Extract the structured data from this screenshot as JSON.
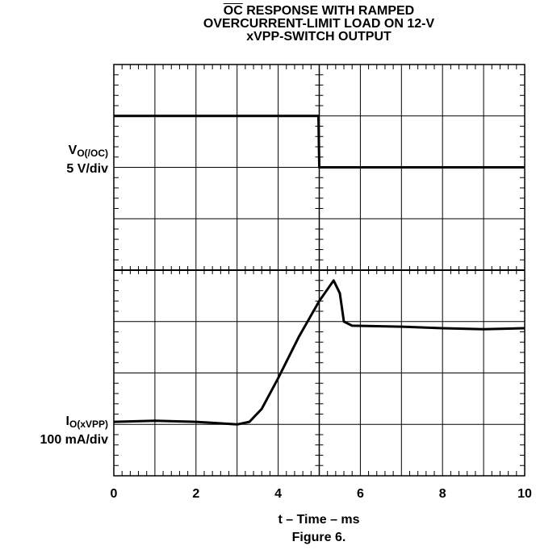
{
  "title": {
    "overline_part": "OC",
    "line1_rest": " RESPONSE WITH RAMPED",
    "line2": "OVERCURRENT-LIMIT LOAD ON 12-V",
    "line3": "xVPP-SWITCH OUTPUT"
  },
  "labels": {
    "v_main": "V",
    "v_sub": "O(/OC)",
    "v_scale": "5 V/div",
    "i_main": "I",
    "i_sub": "O(xVPP)",
    "i_scale": "100 mA/div"
  },
  "xlabel": "t – Time – ms",
  "figure_caption": "Figure 6.",
  "chart_data": {
    "type": "line",
    "title": "OC RESPONSE WITH RAMPED OVERCURRENT-LIMIT LOAD ON 12-V xVPP-SWITCH OUTPUT",
    "xlabel": "t – Time – ms",
    "xlim": [
      0,
      10
    ],
    "x_ticks": [
      0,
      2,
      4,
      6,
      8,
      10
    ],
    "ylim_div": [
      0,
      8
    ],
    "grid": true,
    "series": [
      {
        "name": "V O(/OC)",
        "scale": "5 V/div",
        "unit": "div",
        "points": [
          [
            0,
            7.0
          ],
          [
            4.98,
            7.0
          ],
          [
            5.0,
            6.0
          ],
          [
            10,
            6.0
          ]
        ]
      },
      {
        "name": "I O(xVPP)",
        "scale": "100 mA/div",
        "unit": "div",
        "points": [
          [
            0,
            1.05
          ],
          [
            1.0,
            1.07
          ],
          [
            2.0,
            1.05
          ],
          [
            3.0,
            1.0
          ],
          [
            3.3,
            1.05
          ],
          [
            3.6,
            1.3
          ],
          [
            4.0,
            1.9
          ],
          [
            4.5,
            2.7
          ],
          [
            5.0,
            3.4
          ],
          [
            5.35,
            3.8
          ],
          [
            5.5,
            3.55
          ],
          [
            5.6,
            3.0
          ],
          [
            5.8,
            2.92
          ],
          [
            7.0,
            2.9
          ],
          [
            8.0,
            2.87
          ],
          [
            9.0,
            2.85
          ],
          [
            10.0,
            2.87
          ]
        ]
      }
    ]
  }
}
